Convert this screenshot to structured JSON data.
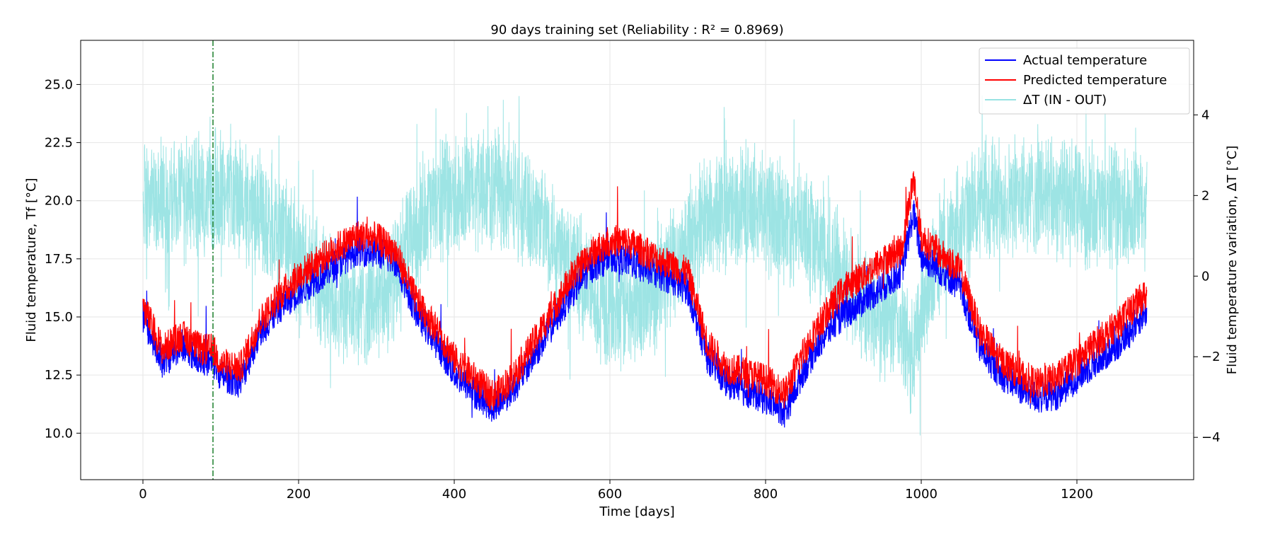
{
  "chart_data": {
    "type": "line",
    "title": "90 days training set (Reliability : R² = 0.8969)",
    "xlabel": "Time [days]",
    "ylabel": "Fluid temperature, Tf [°C]",
    "y2label": "Fluid temperature variation, ΔT [°C]",
    "xlim": [
      -80,
      1350
    ],
    "ylim": [
      8.0,
      26.9
    ],
    "y2lim": [
      -5.05,
      5.85
    ],
    "xticks": [
      0,
      200,
      400,
      600,
      800,
      1000,
      1200
    ],
    "xtick_labels": [
      "0",
      "200",
      "400",
      "600",
      "800",
      "1000",
      "1200"
    ],
    "yticks": [
      10.0,
      12.5,
      15.0,
      17.5,
      20.0,
      22.5,
      25.0
    ],
    "ytick_labels": [
      "10.0",
      "12.5",
      "15.0",
      "17.5",
      "20.0",
      "22.5",
      "25.0"
    ],
    "y2ticks": [
      -4,
      -2,
      0,
      2,
      4
    ],
    "y2tick_labels": [
      "−4",
      "−2",
      "0",
      "2",
      "4"
    ],
    "grid": true,
    "legend_position": "top-right",
    "training_split_day": 90,
    "series": [
      {
        "name": "Actual temperature",
        "color": "#0000ff",
        "axis": "left",
        "x": [
          0,
          25,
          50,
          75,
          90,
          100,
          125,
          150,
          175,
          200,
          225,
          250,
          275,
          300,
          325,
          350,
          375,
          400,
          425,
          450,
          475,
          500,
          525,
          550,
          575,
          600,
          625,
          650,
          675,
          700,
          725,
          750,
          775,
          800,
          825,
          850,
          875,
          900,
          925,
          950,
          975,
          990,
          1000,
          1025,
          1050,
          1075,
          1100,
          1125,
          1150,
          1175,
          1200,
          1225,
          1250,
          1275,
          1290
        ],
        "y": [
          15.0,
          13.0,
          13.8,
          13.2,
          13.0,
          12.5,
          12.2,
          14.3,
          15.4,
          16.1,
          16.7,
          17.3,
          17.9,
          17.8,
          17.4,
          15.3,
          14.0,
          12.6,
          11.8,
          11.1,
          11.9,
          13.2,
          14.6,
          16.0,
          17.1,
          17.6,
          17.4,
          17.0,
          16.7,
          16.2,
          13.3,
          12.2,
          11.8,
          11.5,
          10.9,
          12.8,
          14.2,
          15.1,
          15.7,
          16.3,
          17.0,
          19.5,
          17.6,
          17.0,
          16.3,
          13.7,
          12.6,
          12.0,
          11.5,
          11.7,
          12.4,
          13.1,
          13.7,
          14.7,
          15.3
        ]
      },
      {
        "name": "Predicted temperature",
        "color": "#ff0000",
        "axis": "left",
        "x": [
          0,
          25,
          50,
          75,
          90,
          100,
          125,
          150,
          175,
          200,
          225,
          250,
          275,
          300,
          325,
          350,
          375,
          400,
          425,
          450,
          475,
          500,
          525,
          550,
          575,
          600,
          625,
          650,
          675,
          700,
          725,
          750,
          775,
          800,
          825,
          850,
          875,
          900,
          925,
          950,
          975,
          990,
          1000,
          1025,
          1050,
          1075,
          1100,
          1125,
          1150,
          1175,
          1200,
          1225,
          1250,
          1275,
          1290
        ],
        "y": [
          15.5,
          13.6,
          14.2,
          13.6,
          13.6,
          13.0,
          12.8,
          14.8,
          15.9,
          16.8,
          17.4,
          18.0,
          18.5,
          18.4,
          17.8,
          15.8,
          14.6,
          13.2,
          12.4,
          11.6,
          12.4,
          13.8,
          15.2,
          16.7,
          17.7,
          18.3,
          18.2,
          17.7,
          17.3,
          16.9,
          13.9,
          12.8,
          12.6,
          12.3,
          11.7,
          13.6,
          15.0,
          16.2,
          16.8,
          17.4,
          17.9,
          21.0,
          18.4,
          17.7,
          17.0,
          14.4,
          13.2,
          12.6,
          12.1,
          12.4,
          13.1,
          13.9,
          14.6,
          15.5,
          16.0
        ]
      },
      {
        "name": "ΔT (IN - OUT)",
        "color": "#98e3e3",
        "axis": "right",
        "x": [
          0,
          25,
          50,
          75,
          90,
          100,
          125,
          150,
          175,
          200,
          225,
          250,
          275,
          300,
          325,
          350,
          375,
          400,
          425,
          450,
          475,
          500,
          525,
          550,
          575,
          600,
          625,
          650,
          675,
          700,
          725,
          750,
          775,
          800,
          825,
          850,
          875,
          900,
          925,
          950,
          975,
          990,
          1000,
          1025,
          1050,
          1075,
          1100,
          1125,
          1150,
          1175,
          1200,
          1225,
          1250,
          1275,
          1290
        ],
        "y": [
          1.8,
          1.9,
          1.8,
          2.0,
          2.0,
          2.1,
          1.8,
          1.5,
          1.1,
          0.4,
          -0.3,
          -0.6,
          -0.8,
          -0.7,
          -0.1,
          1.2,
          1.8,
          2.0,
          2.1,
          2.3,
          2.0,
          1.6,
          1.0,
          0.3,
          -0.4,
          -0.9,
          -0.8,
          -0.5,
          0.2,
          0.8,
          1.5,
          1.6,
          1.7,
          1.6,
          1.4,
          1.1,
          0.6,
          0.0,
          -0.6,
          -1.0,
          -1.3,
          -2.2,
          -0.8,
          0.6,
          1.3,
          1.7,
          1.9,
          2.0,
          2.0,
          1.9,
          1.8,
          1.7,
          1.7,
          1.7,
          1.6
        ]
      }
    ]
  }
}
